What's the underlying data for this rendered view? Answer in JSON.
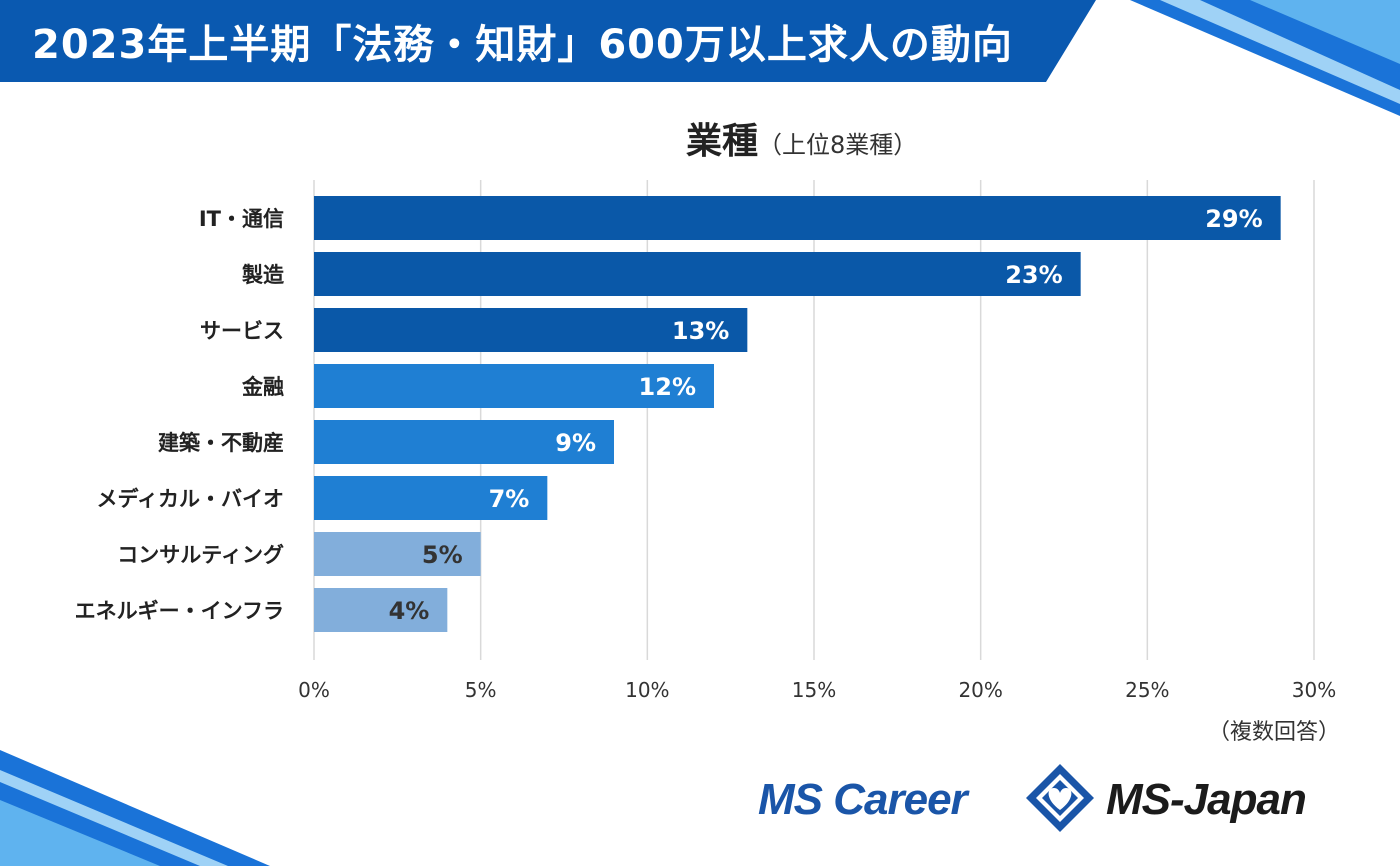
{
  "header": {
    "title": "2023年上半期「法務・知財」600万以上求人の動向"
  },
  "chart_data": {
    "type": "bar",
    "orientation": "horizontal",
    "title": "業種",
    "subtitle": "（上位8業種）",
    "categories": [
      "IT・通信",
      "製造",
      "サービス",
      "金融",
      "建築・不動産",
      "メディカル・バイオ",
      "コンサルティング",
      "エネルギー・インフラ"
    ],
    "values": [
      29,
      23,
      13,
      12,
      9,
      7,
      5,
      4
    ],
    "value_labels": [
      "29%",
      "23%",
      "13%",
      "12%",
      "9%",
      "7%",
      "5%",
      "4%"
    ],
    "xlim": [
      0,
      30
    ],
    "xticks": [
      0,
      5,
      10,
      15,
      20,
      25,
      30
    ],
    "xtick_labels": [
      "0%",
      "5%",
      "10%",
      "15%",
      "20%",
      "25%",
      "30%"
    ],
    "grid": true,
    "colors": [
      "#0a58a8",
      "#0a58a8",
      "#0a58a8",
      "#1f7fd3",
      "#1f7fd3",
      "#1f7fd3",
      "#82aedb",
      "#82aedb"
    ],
    "label_colors": [
      "#ffffff",
      "#ffffff",
      "#ffffff",
      "#ffffff",
      "#ffffff",
      "#ffffff",
      "#333333",
      "#333333"
    ]
  },
  "footer": {
    "note": "（複数回答）",
    "logo_left": "MS Career",
    "logo_right": "MS-Japan"
  }
}
